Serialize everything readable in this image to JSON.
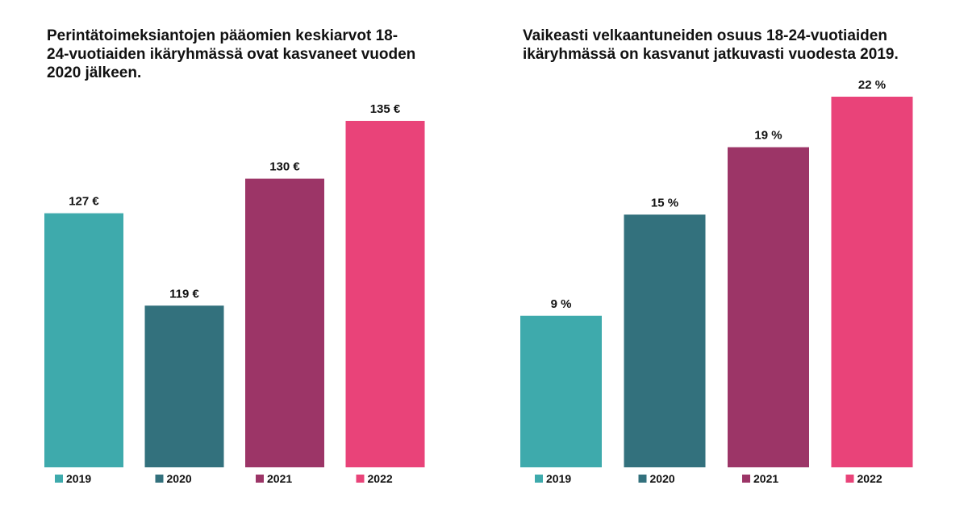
{
  "chart_data": [
    {
      "type": "bar",
      "title": "Perintätoimeksiantojen pääomien keskiarvot 18-24-vuotiaiden ikäryhmässä ovat kasvaneet vuoden 2020 jälkeen.",
      "categories": [
        "2019",
        "2020",
        "2021",
        "2022"
      ],
      "values": [
        127,
        119,
        130,
        135
      ],
      "value_labels": [
        "127 €",
        "119 €",
        "130 €",
        "135 €"
      ],
      "colors": [
        "#3eaaac",
        "#33717d",
        "#9c3567",
        "#e94379"
      ],
      "baseline": 105,
      "ylim": [
        105,
        135
      ],
      "grid": false,
      "legend_position": "bottom"
    },
    {
      "type": "bar",
      "title": "Vaikeasti velkaantuneiden osuus 18-24-vuotiaiden ikäryhmässä on kasvanut jatkuvasti vuodesta 2019.",
      "categories": [
        "2019",
        "2020",
        "2021",
        "2022"
      ],
      "values": [
        9,
        15,
        19,
        22
      ],
      "value_labels": [
        "9 %",
        "15 %",
        "19 %",
        "22 %"
      ],
      "colors": [
        "#3eaaac",
        "#33717d",
        "#9c3567",
        "#e94379"
      ],
      "baseline": 0,
      "ylim": [
        0,
        22
      ],
      "grid": false,
      "legend_position": "bottom"
    }
  ]
}
